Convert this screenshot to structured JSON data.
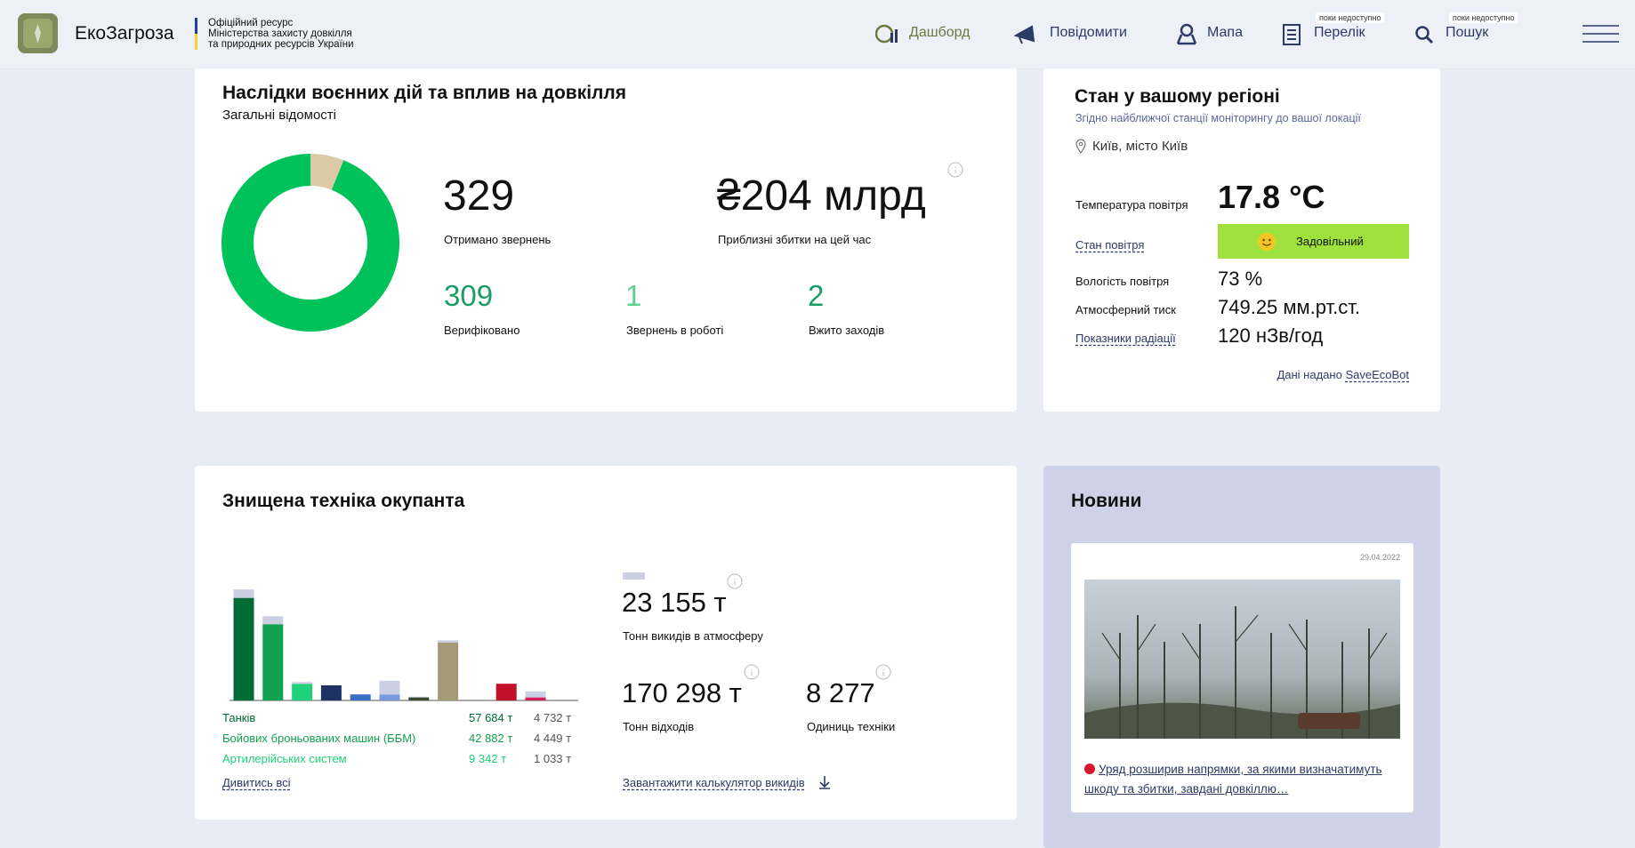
{
  "header": {
    "brand": "ЕкоЗагроза",
    "org_lines": [
      "Офіційний ресурс",
      "Міністерства захисту довкілля",
      "та природних ресурсів України"
    ]
  },
  "nav": [
    {
      "label": "Дашборд"
    },
    {
      "label": "Повідомити"
    },
    {
      "label": "Мапа"
    },
    {
      "label": "Перелік",
      "badge": "поки недоступно"
    },
    {
      "label": "Пошук",
      "badge": "поки недоступно"
    }
  ],
  "impact": {
    "title": "Наслідки воєнних дій та вплив на довкілля",
    "subtitle": "Загальні відомості",
    "stats": [
      {
        "value": "329",
        "label": "Отримано звернень"
      },
      {
        "value": "₴204 млрд",
        "label": "Приблизні збитки на цей час"
      },
      {
        "value": "309",
        "label": "Верифіковано"
      },
      {
        "value": "1",
        "label": "Звернень в роботі"
      },
      {
        "value": "2",
        "label": "Вжито заходів"
      }
    ]
  },
  "region": {
    "title": "Стан у вашому регіоні",
    "subtitle": "Згідно найближчої станції моніторингу до вашої локації",
    "location": "Київ, місто Київ",
    "rows": [
      {
        "label": "Температура повітря",
        "value": "17.8 °C"
      },
      {
        "label": "Стан повітря",
        "value": "Задовільний"
      },
      {
        "label": "Вологість повітря",
        "value": "73 %"
      },
      {
        "label": "Атмосферний тиск",
        "value": "749.25 мм.рт.ст."
      },
      {
        "label": "Показники радіації",
        "value": "120 нЗв/год"
      }
    ],
    "source_prefix": "Дані надано",
    "source_link": "SaveEcoBot"
  },
  "equipment": {
    "title": "Знищена техніка окупанта",
    "see_all": "Дивитись всі",
    "stats": [
      {
        "value": "23 155 т",
        "label": "Тонн викидів в атмосферу"
      },
      {
        "value": "170 298 т",
        "label": "Тонн відходів"
      },
      {
        "value": "8 277",
        "label": "Одиниць техніки"
      }
    ],
    "calculator": "Завантажити калькулятор викидів"
  },
  "news": {
    "title": "Новини",
    "date": "29.04.2022",
    "headline": "Уряд розширив напрямки, за якими визначатимуть шкоду та збитки, завдані довкіллю…"
  },
  "chart_data": [
    {
      "type": "donut",
      "values": [
        20,
        309
      ],
      "colors": [
        "#dccaa6",
        "#00c25a"
      ]
    },
    {
      "type": "bar",
      "stacked": true,
      "ylim": [
        0,
        80000
      ],
      "categories": [
        "Танків",
        "Бойових броньованих машин (ББМ)",
        "Артилерійських систем",
        null,
        null,
        null,
        null,
        null,
        null,
        null,
        null
      ],
      "series": [
        {
          "values": [
            57684,
            42882,
            9342,
            8500,
            3400,
            3400,
            1700,
            32500,
            null,
            9400,
            1700
          ],
          "value_labels": [
            "57 684 т",
            "42 882 т",
            "9 342 т",
            null,
            null,
            null,
            null,
            null,
            null,
            null,
            null
          ],
          "colors": [
            "#006b35",
            "#12a150",
            "#1fd27a",
            "#1e3263",
            "#3b6fc4",
            "#7799dd",
            "#3d4a2b",
            "#a59a78",
            "#cccccc",
            "#c0102a",
            "#d61f5a"
          ]
        },
        {
          "values": [
            4732,
            4449,
            1033,
            null,
            null,
            7700,
            400,
            1300,
            null,
            null,
            3400
          ],
          "value_labels": [
            "4 732 т",
            "4 449 т",
            "1 033 т",
            null,
            null,
            null,
            null,
            null,
            null,
            null,
            null
          ],
          "color": "#cbcfe4"
        }
      ]
    }
  ]
}
